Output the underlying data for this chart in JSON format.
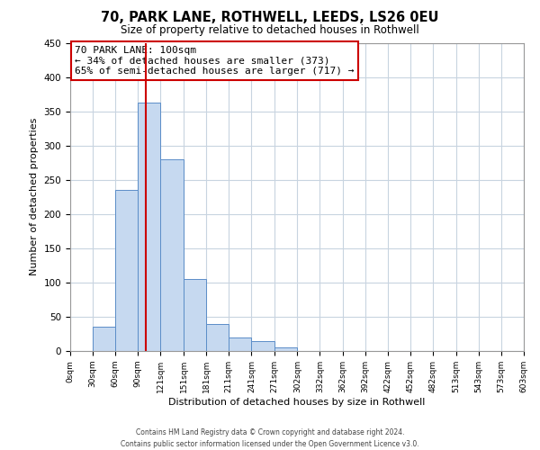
{
  "title": "70, PARK LANE, ROTHWELL, LEEDS, LS26 0EU",
  "subtitle": "Size of property relative to detached houses in Rothwell",
  "xlabel": "Distribution of detached houses by size in Rothwell",
  "ylabel": "Number of detached properties",
  "bar_values": [
    0,
    35,
    235,
    363,
    280,
    105,
    40,
    20,
    15,
    5,
    0,
    0,
    0,
    0,
    0,
    0,
    0,
    0,
    0,
    0
  ],
  "bin_edges": [
    0,
    30,
    60,
    90,
    120,
    151,
    181,
    211,
    241,
    271,
    302,
    332,
    362,
    392,
    422,
    452,
    482,
    513,
    543,
    573,
    603
  ],
  "x_tick_labels": [
    "0sqm",
    "30sqm",
    "60sqm",
    "90sqm",
    "121sqm",
    "151sqm",
    "181sqm",
    "211sqm",
    "241sqm",
    "271sqm",
    "302sqm",
    "332sqm",
    "362sqm",
    "392sqm",
    "422sqm",
    "452sqm",
    "482sqm",
    "513sqm",
    "543sqm",
    "573sqm",
    "603sqm"
  ],
  "ylim": [
    0,
    450
  ],
  "yticks": [
    0,
    50,
    100,
    150,
    200,
    250,
    300,
    350,
    400,
    450
  ],
  "bar_color": "#c6d9f0",
  "bar_edge_color": "#5b8dc8",
  "redline_x": 100,
  "annotation_line1": "70 PARK LANE: 100sqm",
  "annotation_line2": "← 34% of detached houses are smaller (373)",
  "annotation_line3": "65% of semi-detached houses are larger (717) →",
  "annotation_box_color": "#ffffff",
  "annotation_box_edgecolor": "#cc0000",
  "background_color": "#ffffff",
  "grid_color": "#c8d4e0",
  "footer_line1": "Contains HM Land Registry data © Crown copyright and database right 2024.",
  "footer_line2": "Contains public sector information licensed under the Open Government Licence v3.0."
}
